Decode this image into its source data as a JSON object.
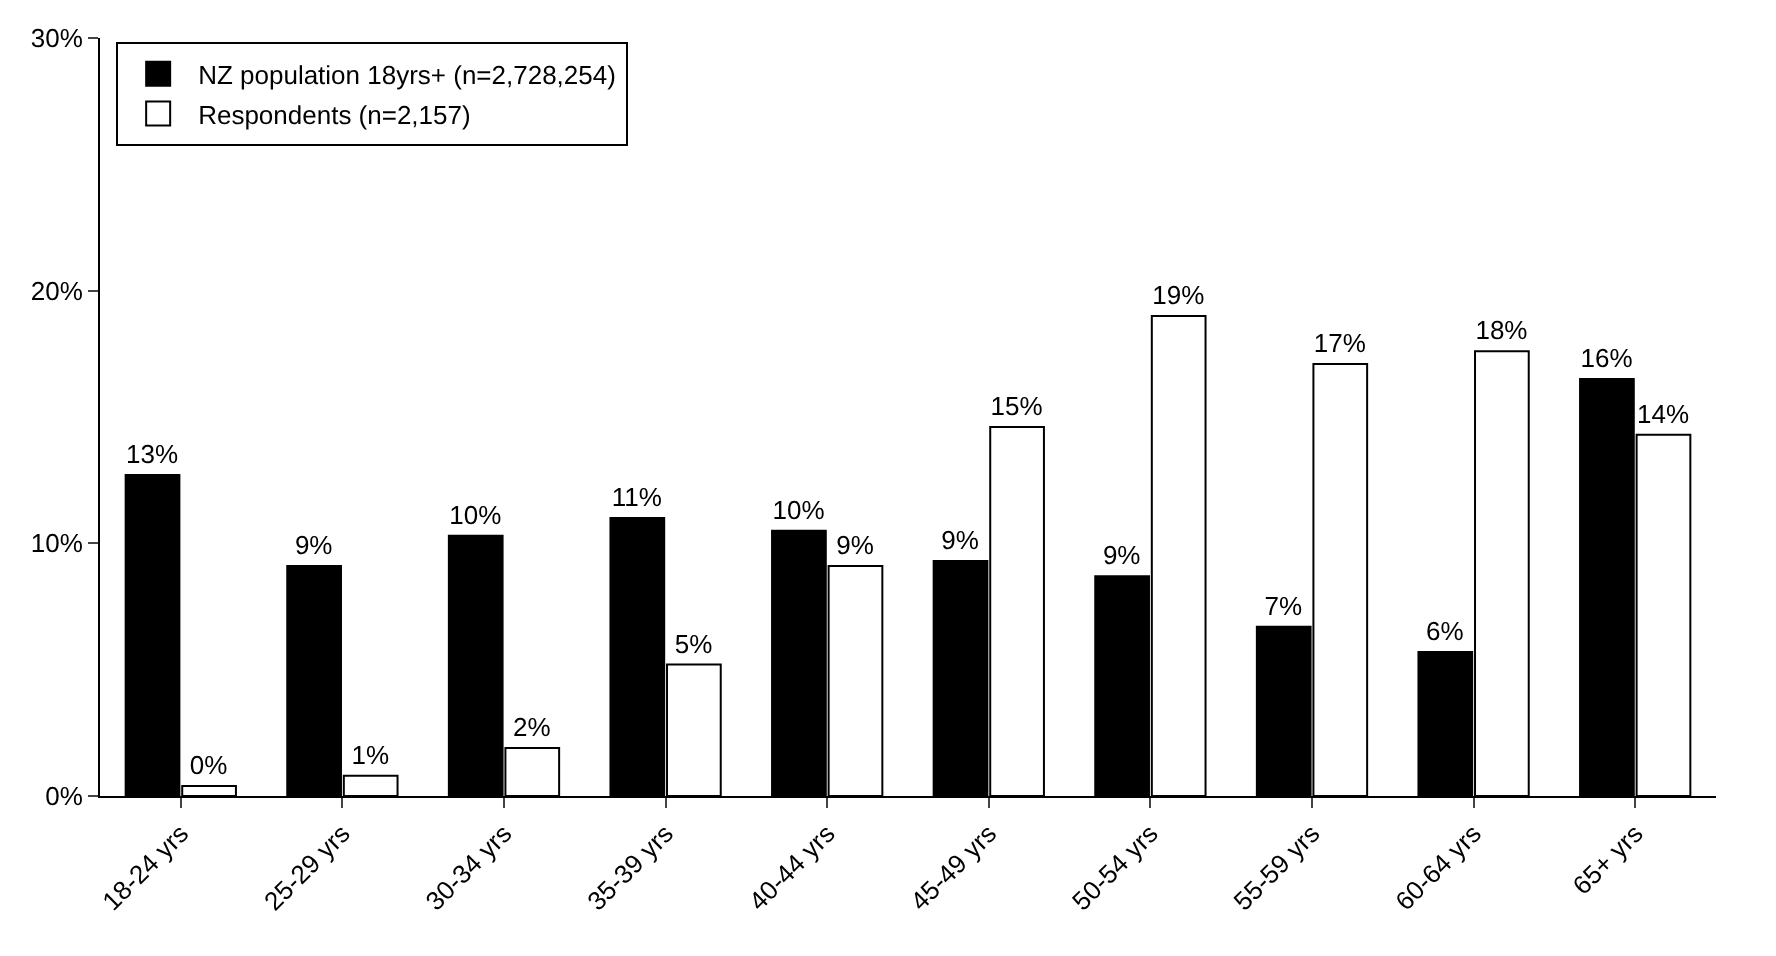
{
  "chart_data": {
    "type": "bar",
    "categories": [
      "18-24 yrs",
      "25-29 yrs",
      "30-34 yrs",
      "35-39 yrs",
      "40-44 yrs",
      "45-49 yrs",
      "50-54 yrs",
      "55-59 yrs",
      "60-64 yrs",
      "65+ yrs"
    ],
    "series": [
      {
        "name": "NZ population 18yrs+ (n=2,728,254)",
        "color": "#000000",
        "values": [
          12.7,
          9.1,
          10.3,
          11.0,
          10.5,
          9.3,
          8.7,
          6.7,
          5.7,
          16.5
        ],
        "value_labels": [
          "13%",
          "9%",
          "10%",
          "11%",
          "10%",
          "9%",
          "9%",
          "7%",
          "6%",
          "16%"
        ]
      },
      {
        "name": "Respondents (n=2,157)",
        "color": "#ffffff",
        "values": [
          0.4,
          0.8,
          1.9,
          5.2,
          9.1,
          14.6,
          19.0,
          17.1,
          17.6,
          14.3
        ],
        "value_labels": [
          "0%",
          "1%",
          "2%",
          "5%",
          "9%",
          "15%",
          "19%",
          "17%",
          "18%",
          "14%"
        ]
      }
    ],
    "ylim": [
      0,
      30
    ],
    "yticks": [
      {
        "value": 0,
        "label": "0%"
      },
      {
        "value": 10,
        "label": "10%"
      },
      {
        "value": 20,
        "label": "20%"
      },
      {
        "value": 30,
        "label": "30%"
      }
    ],
    "legend": "top left"
  }
}
